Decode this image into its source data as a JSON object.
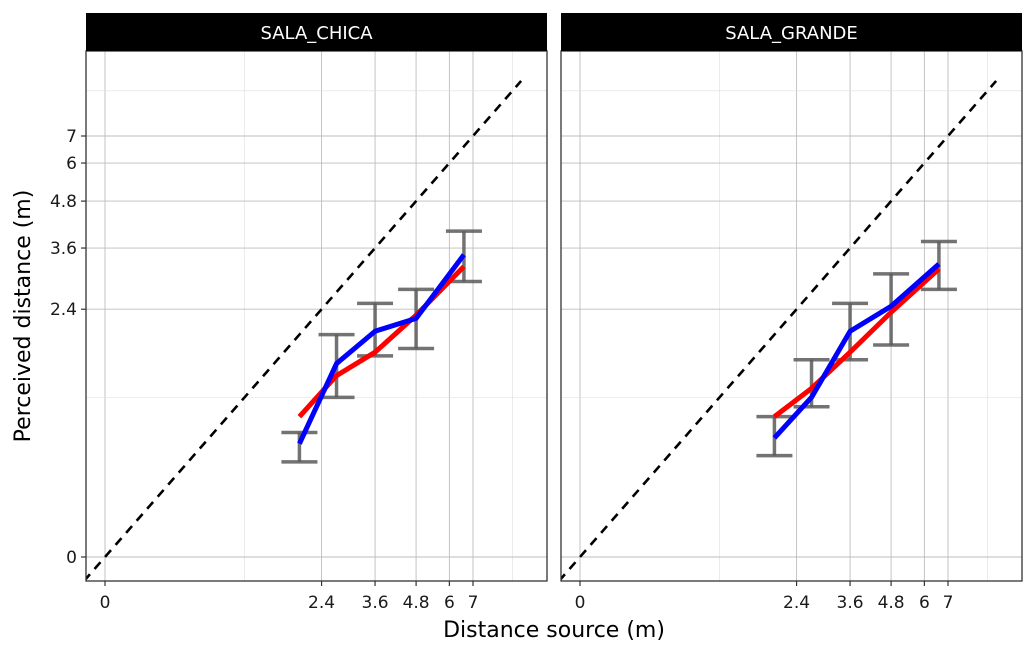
{
  "chart_data": {
    "type": "line",
    "xlabel": "Distance source (m)",
    "ylabel": "Perceived distance (m)",
    "x_ticks": [
      "0",
      "2.4",
      "3.6",
      "4.8",
      "6",
      "7"
    ],
    "y_ticks": [
      "0",
      "2.4",
      "3.6",
      "4.8",
      "6",
      "7"
    ],
    "axis_scale": "log1p",
    "xlim": [
      -0.3,
      9.5
    ],
    "ylim": [
      -0.3,
      9.5
    ],
    "grid": true,
    "reference_line": "identity (dashed)",
    "colors": {
      "fit": "#ff0000",
      "mean": "#0000ff",
      "errorbar": "#5a5a5a",
      "identity": "#000000",
      "strip": "#000000"
    },
    "panels": [
      {
        "strip": "SALA_CHICA",
        "x": [
          2.0,
          2.7,
          3.6,
          4.8,
          6.6
        ],
        "mean": [
          0.75,
          1.6,
          2.05,
          2.25,
          3.45
        ],
        "fit": [
          1.0,
          1.45,
          1.75,
          2.3,
          3.2
        ],
        "err_low": [
          0.6,
          1.2,
          1.7,
          1.8,
          2.9
        ],
        "err_high": [
          0.85,
          2.0,
          2.5,
          2.75,
          4.0
        ]
      },
      {
        "strip": "SALA_GRANDE",
        "x": [
          2.0,
          2.7,
          3.6,
          4.8,
          6.6
        ],
        "mean": [
          0.8,
          1.2,
          2.05,
          2.45,
          3.25
        ],
        "fit": [
          1.0,
          1.3,
          1.75,
          2.35,
          3.15
        ],
        "err_low": [
          0.65,
          1.1,
          1.65,
          1.85,
          2.75
        ],
        "err_high": [
          1.0,
          1.65,
          2.5,
          3.05,
          3.75
        ]
      }
    ]
  }
}
